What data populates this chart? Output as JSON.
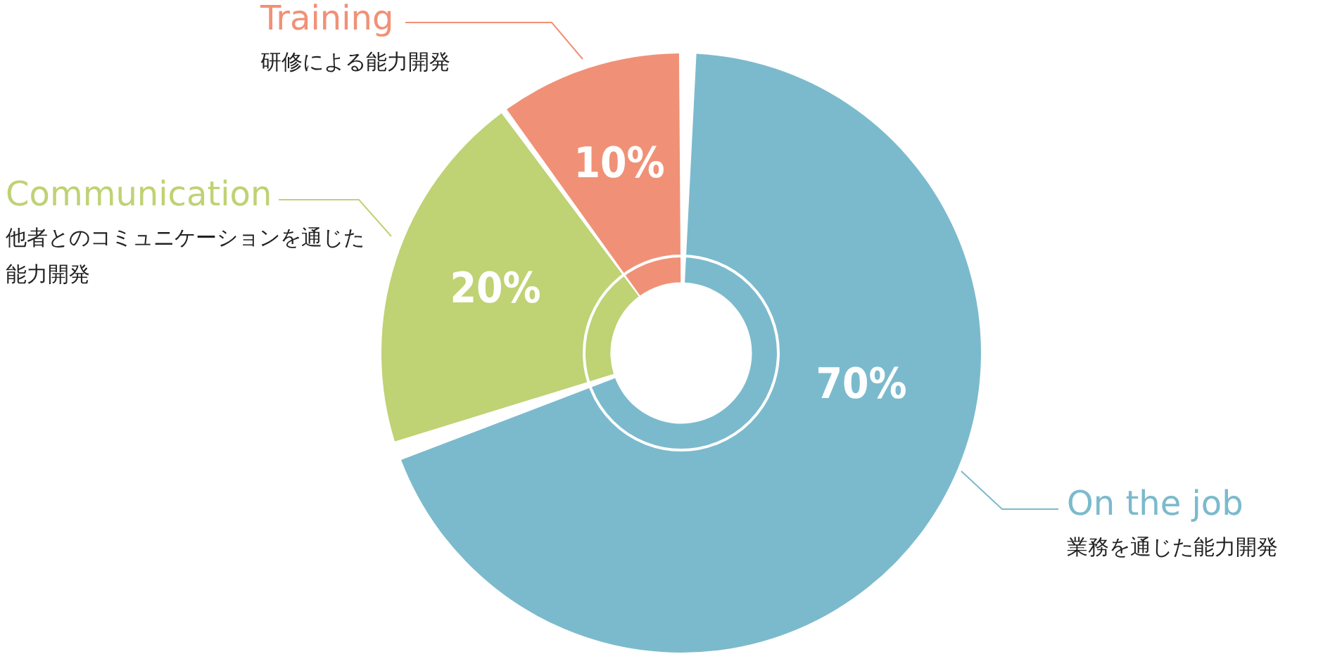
{
  "chart_data": {
    "type": "donut",
    "categories": [
      "On the job",
      "Communication",
      "Training"
    ],
    "values": [
      70,
      20,
      10
    ],
    "value_labels": [
      "70%",
      "20%",
      "10%"
    ],
    "colors": [
      "#7bbacd",
      "#bfd274",
      "#f09177"
    ],
    "annotations": [
      "業務を通じた能力開発",
      "他者とのコミュニケーションを通じた能力開発",
      "研修による能力開発"
    ],
    "legend": false
  }
}
